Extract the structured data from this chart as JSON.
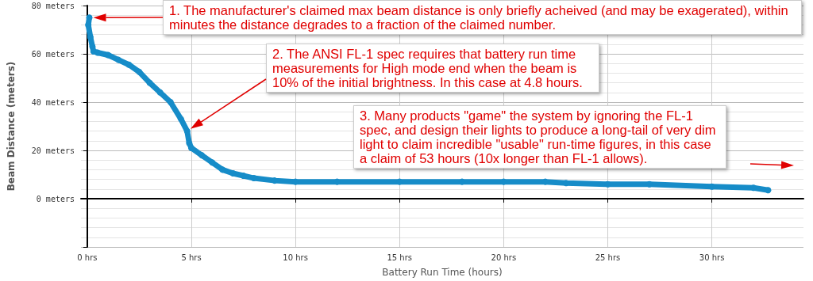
{
  "chart_data": {
    "type": "line",
    "xlabel": "Battery Run Time (hours)",
    "ylabel": "Beam Distance (meters)",
    "xlim": [
      -0.3,
      34.4
    ],
    "xticks": [
      {
        "value": 0,
        "label": "0 hrs"
      },
      {
        "value": 5,
        "label": "5 hrs"
      },
      {
        "value": 10,
        "label": "10 hrs"
      },
      {
        "value": 15,
        "label": "15 hrs"
      },
      {
        "value": 20,
        "label": "20 hrs"
      },
      {
        "value": 25,
        "label": "25 hrs"
      },
      {
        "value": 30,
        "label": "30 hrs"
      }
    ],
    "ylim": [
      -20,
      80
    ],
    "yticks": [
      {
        "value": -20,
        "label": null
      },
      {
        "value": 0,
        "label": "0 meters"
      },
      {
        "value": 20,
        "label": "20 meters"
      },
      {
        "value": 40,
        "label": "40 meters"
      },
      {
        "value": 60,
        "label": "60 meters"
      },
      {
        "value": 80,
        "label": "80 meters"
      }
    ],
    "grid": true,
    "marker": "circle",
    "series": [
      {
        "color": "#168cc8",
        "x": [
          0.1,
          0.05,
          0.15,
          0.25,
          0.3,
          0.5,
          1,
          1.5,
          2,
          2.5,
          3,
          3.5,
          4,
          4.5,
          4.8,
          4.9,
          5,
          5.5,
          6,
          6.5,
          7,
          7.5,
          8,
          9,
          10,
          12,
          15,
          18,
          20,
          22,
          23,
          25,
          27,
          30,
          32,
          32.7
        ],
        "values": [
          75,
          72,
          67,
          63,
          61,
          60.5,
          59.5,
          57.5,
          55.5,
          52.5,
          48,
          44,
          40,
          33,
          28,
          23,
          21,
          18,
          15,
          12,
          10.5,
          9.5,
          8.5,
          7.5,
          7,
          7,
          7,
          7,
          7,
          7,
          6.5,
          6,
          6,
          5,
          4.5,
          3.5
        ]
      }
    ],
    "annotations": [
      "1. The manufacturer's claimed max beam distance is only briefly acheived (and may be exagerated), within minutes the distance degrades to a fraction of the claimed number.",
      "2. The ANSI FL-1 spec requires that battery run time measurements for High mode end when the beam is 10% of the initial brightness.  In this case at 4.8 hours.",
      "3. Many products \"game\" the system by ignoring the FL-1 spec, and design their lights to produce a long-tail of very dim light to claim incredible \"usable\" run-time figures, in this case a claim of 53 hours (10x longer than FL-1 allows)."
    ]
  }
}
